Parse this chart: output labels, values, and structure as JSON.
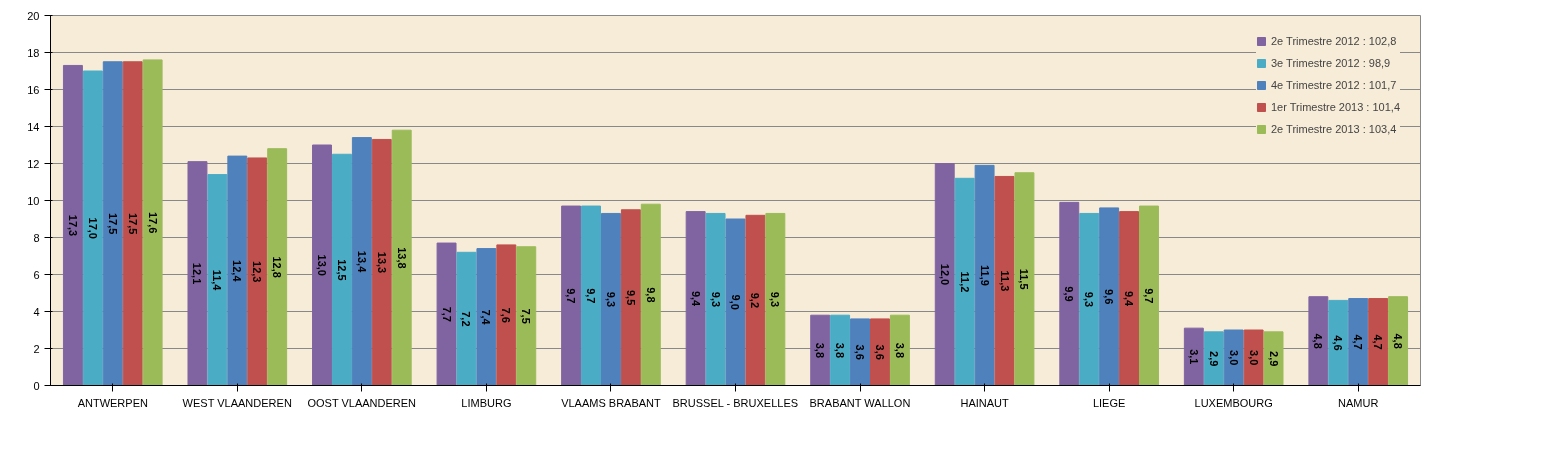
{
  "chart_data": {
    "type": "bar",
    "categories": [
      "ANTWERPEN",
      "WEST VLAANDEREN",
      "OOST VLAANDEREN",
      "LIMBURG",
      "VLAAMS BRABANT",
      "BRUSSEL - BRUXELLES",
      "BRABANT WALLON",
      "HAINAUT",
      "LIEGE",
      "LUXEMBOURG",
      "NAMUR"
    ],
    "series": [
      {
        "name": "2e Trimestre 2012 : 102,8",
        "color": "#8064a2",
        "values": [
          17.3,
          12.1,
          13.0,
          7.7,
          9.7,
          9.4,
          3.8,
          12.0,
          9.9,
          3.1,
          4.8
        ],
        "value_labels": [
          "17,3",
          "12,1",
          "13,0",
          "7,7",
          "9,7",
          "9,4",
          "3,8",
          "12,0",
          "9,9",
          "3,1",
          "4,8"
        ]
      },
      {
        "name": "3e Trimestre 2012 : 98,9",
        "color": "#4bacc6",
        "values": [
          17.0,
          11.4,
          12.5,
          7.2,
          9.7,
          9.3,
          3.8,
          11.2,
          9.3,
          2.9,
          4.6
        ],
        "value_labels": [
          "17,0",
          "11,4",
          "12,5",
          "7,2",
          "9,7",
          "9,3",
          "3,8",
          "11,2",
          "9,3",
          "2,9",
          "4,6"
        ]
      },
      {
        "name": "4e Trimestre 2012 : 101,7",
        "color": "#4f81bd",
        "values": [
          17.5,
          12.4,
          13.4,
          7.4,
          9.3,
          9.0,
          3.6,
          11.9,
          9.6,
          3.0,
          4.7
        ],
        "value_labels": [
          "17,5",
          "12,4",
          "13,4",
          "7,4",
          "9,3",
          "9,0",
          "3,6",
          "11,9",
          "9,6",
          "3,0",
          "4,7"
        ]
      },
      {
        "name": "1er Trimestre 2013 : 101,4",
        "color": "#c0504d",
        "values": [
          17.5,
          12.3,
          13.3,
          7.6,
          9.5,
          9.2,
          3.6,
          11.3,
          9.4,
          3.0,
          4.7
        ],
        "value_labels": [
          "17,5",
          "12,3",
          "13,3",
          "7,6",
          "9,5",
          "9,2",
          "3,6",
          "11,3",
          "9,4",
          "3,0",
          "4,7"
        ]
      },
      {
        "name": "2e Trimestre 2013 : 103,4",
        "color": "#9bbb59",
        "values": [
          17.6,
          12.8,
          13.8,
          7.5,
          9.8,
          9.3,
          3.8,
          11.5,
          9.7,
          2.9,
          4.8
        ],
        "value_labels": [
          "17,6",
          "12,8",
          "13,8",
          "7,5",
          "9,8",
          "9,3",
          "3,8",
          "11,5",
          "9,7",
          "2,9",
          "4,8"
        ]
      }
    ],
    "ylim": [
      0,
      20
    ],
    "yticks": [
      0,
      2,
      4,
      6,
      8,
      10,
      12,
      14,
      16,
      18,
      20
    ],
    "grid": "y",
    "legend": "top right"
  }
}
